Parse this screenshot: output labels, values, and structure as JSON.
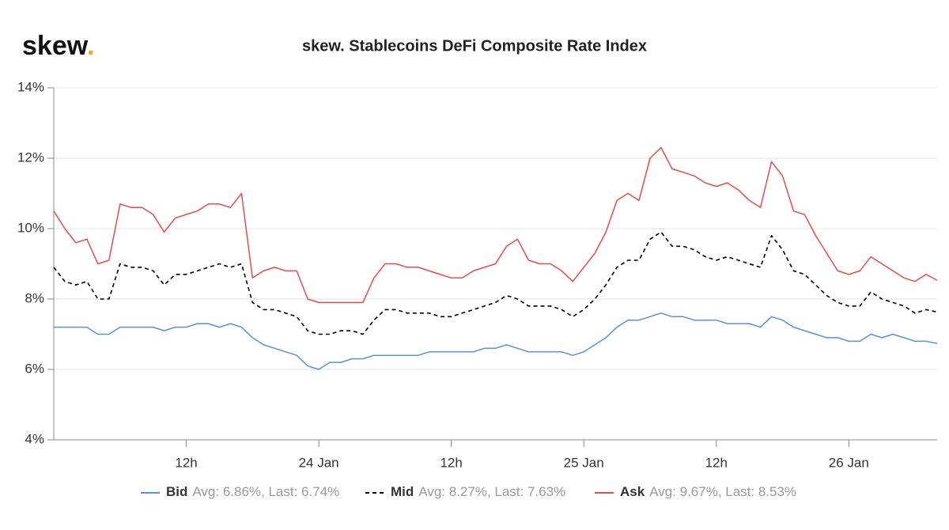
{
  "chart_data": {
    "type": "line",
    "logo": {
      "text": "skew",
      "dot": "."
    },
    "title": "skew. Stablecoins DeFi Composite Rate Index",
    "x": [
      0,
      1,
      2,
      3,
      4,
      5,
      6,
      7,
      8,
      9,
      10,
      11,
      12,
      13,
      14,
      15,
      16,
      17,
      18,
      19,
      20,
      21,
      22,
      23,
      24,
      25,
      26,
      27,
      28,
      29,
      30,
      31,
      32,
      33,
      34,
      35,
      36,
      37,
      38,
      39,
      40,
      41,
      42,
      43,
      44,
      45,
      46,
      47,
      48,
      49,
      50,
      51,
      52,
      53,
      54,
      55,
      56,
      57,
      58,
      59,
      60,
      61,
      62,
      63,
      64,
      65,
      66,
      67,
      68,
      69,
      70,
      71,
      72,
      73,
      74,
      75,
      76,
      77,
      78,
      79,
      80
    ],
    "xlim": [
      0,
      80
    ],
    "xticks": [
      {
        "value": 12,
        "label": "12h"
      },
      {
        "value": 24,
        "label": "24 Jan"
      },
      {
        "value": 36,
        "label": "12h"
      },
      {
        "value": 48,
        "label": "25 Jan"
      },
      {
        "value": 60,
        "label": "12h"
      },
      {
        "value": 72,
        "label": "26 Jan"
      }
    ],
    "ylim": [
      4,
      14
    ],
    "yticks": [
      {
        "value": 4,
        "label": "4%"
      },
      {
        "value": 6,
        "label": "6%"
      },
      {
        "value": 8,
        "label": "8%"
      },
      {
        "value": 10,
        "label": "10%"
      },
      {
        "value": 12,
        "label": "12%"
      },
      {
        "value": 14,
        "label": "14%"
      }
    ],
    "grid": true,
    "legend": "bottom",
    "series": [
      {
        "name": "Bid",
        "legend_text": "Avg: 6.86%, Last: 6.74%",
        "color": "#5b8ee6",
        "dash": false,
        "values": [
          7.2,
          7.2,
          7.2,
          7.2,
          7.0,
          7.0,
          7.2,
          7.2,
          7.2,
          7.2,
          7.1,
          7.2,
          7.2,
          7.3,
          7.3,
          7.2,
          7.3,
          7.2,
          6.9,
          6.7,
          6.6,
          6.5,
          6.4,
          6.1,
          6.0,
          6.2,
          6.2,
          6.3,
          6.3,
          6.4,
          6.4,
          6.4,
          6.4,
          6.4,
          6.5,
          6.5,
          6.5,
          6.5,
          6.5,
          6.6,
          6.6,
          6.7,
          6.6,
          6.5,
          6.5,
          6.5,
          6.5,
          6.4,
          6.5,
          6.7,
          6.9,
          7.2,
          7.4,
          7.4,
          7.5,
          7.6,
          7.5,
          7.5,
          7.4,
          7.4,
          7.4,
          7.3,
          7.3,
          7.3,
          7.2,
          7.5,
          7.4,
          7.2,
          7.1,
          7.0,
          6.9,
          6.9,
          6.8,
          6.8,
          7.0,
          6.9,
          7.0,
          6.9,
          6.8,
          6.8,
          6.74
        ]
      },
      {
        "name": "Mid",
        "legend_text": "Avg: 8.27%, Last: 7.63%",
        "color": "#000000",
        "dash": true,
        "values": [
          8.9,
          8.5,
          8.4,
          8.5,
          8.0,
          8.0,
          9.0,
          8.9,
          8.9,
          8.8,
          8.4,
          8.7,
          8.7,
          8.8,
          8.9,
          9.0,
          8.9,
          9.0,
          7.9,
          7.7,
          7.7,
          7.6,
          7.5,
          7.1,
          7.0,
          7.0,
          7.1,
          7.1,
          7.0,
          7.4,
          7.7,
          7.7,
          7.6,
          7.6,
          7.6,
          7.5,
          7.5,
          7.6,
          7.7,
          7.8,
          7.9,
          8.1,
          8.0,
          7.8,
          7.8,
          7.8,
          7.7,
          7.5,
          7.7,
          8.0,
          8.4,
          8.9,
          9.1,
          9.1,
          9.7,
          9.9,
          9.5,
          9.5,
          9.4,
          9.2,
          9.1,
          9.2,
          9.1,
          9.0,
          8.9,
          9.8,
          9.4,
          8.8,
          8.7,
          8.4,
          8.1,
          7.9,
          7.8,
          7.8,
          8.2,
          8.0,
          7.9,
          7.8,
          7.6,
          7.7,
          7.63
        ]
      },
      {
        "name": "Ask",
        "legend_text": "Avg: 9.67%, Last: 8.53%",
        "color": "#e84a4f",
        "dash": false,
        "values": [
          10.5,
          10.0,
          9.6,
          9.7,
          9.0,
          9.1,
          10.7,
          10.6,
          10.6,
          10.4,
          9.9,
          10.3,
          10.4,
          10.5,
          10.7,
          10.7,
          10.6,
          11.0,
          8.6,
          8.8,
          8.9,
          8.8,
          8.8,
          8.0,
          7.9,
          7.9,
          7.9,
          7.9,
          7.9,
          8.6,
          9.0,
          9.0,
          8.9,
          8.9,
          8.8,
          8.7,
          8.6,
          8.6,
          8.8,
          8.9,
          9.0,
          9.5,
          9.7,
          9.1,
          9.0,
          9.0,
          8.8,
          8.5,
          8.9,
          9.3,
          9.9,
          10.8,
          11.0,
          10.8,
          12.0,
          12.3,
          11.7,
          11.6,
          11.5,
          11.3,
          11.2,
          11.3,
          11.1,
          10.8,
          10.6,
          11.9,
          11.5,
          10.5,
          10.4,
          9.8,
          9.3,
          8.8,
          8.7,
          8.8,
          9.2,
          9.0,
          8.8,
          8.6,
          8.5,
          8.7,
          8.53
        ]
      }
    ]
  }
}
